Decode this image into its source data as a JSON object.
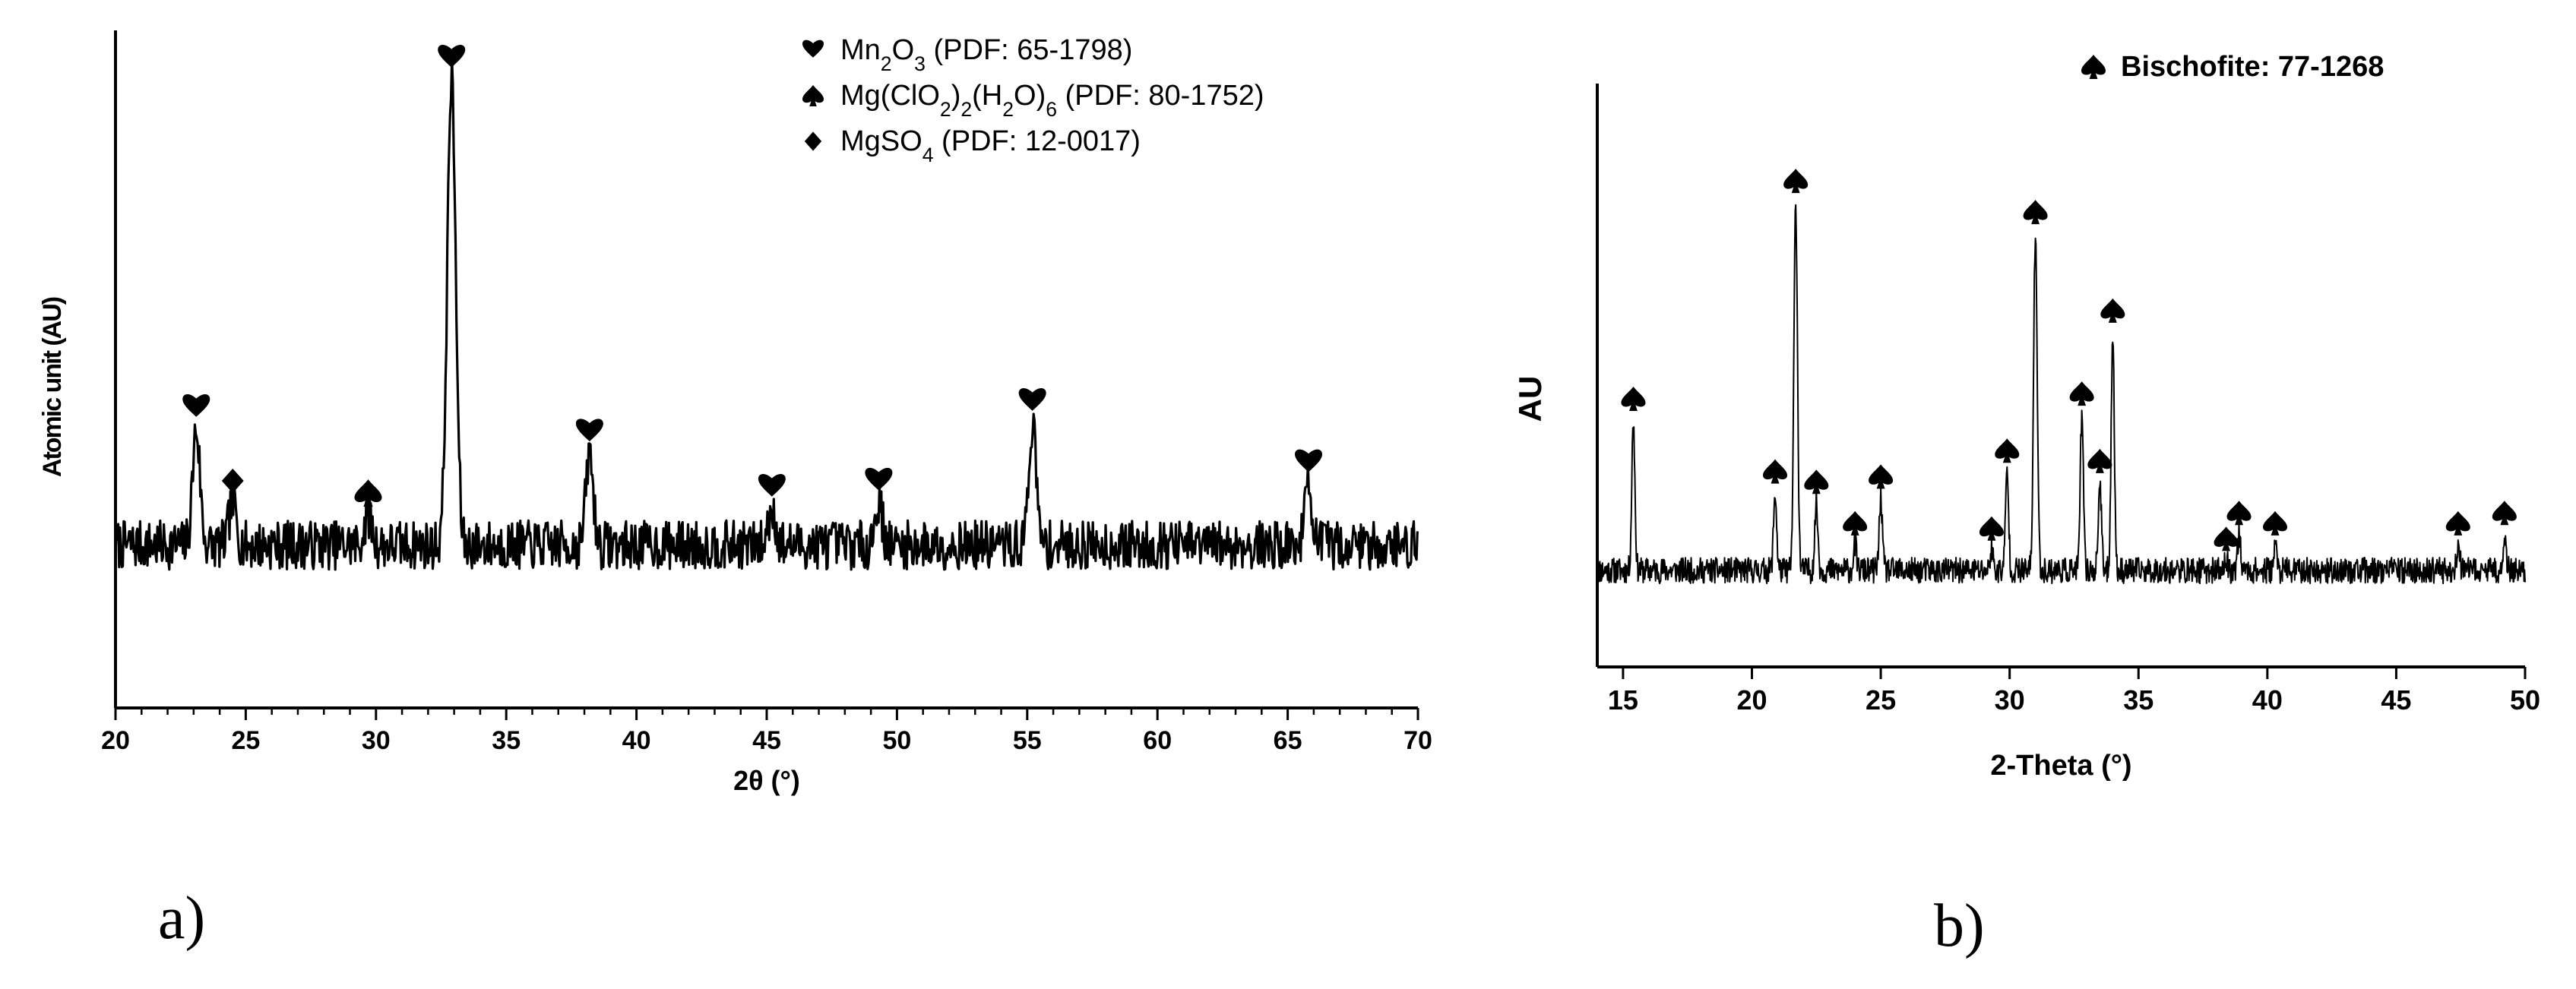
{
  "chart_data": [
    {
      "id": "a",
      "type": "line",
      "panel_label": "a)",
      "title": "",
      "xlabel": "2θ (°)",
      "ylabel": "Atomic unit (AU)",
      "xlim": [
        20,
        70
      ],
      "xticks": [
        20,
        25,
        30,
        35,
        40,
        45,
        50,
        55,
        60,
        65,
        70
      ],
      "ylim": [
        0,
        100
      ],
      "grid": false,
      "baseline": 21,
      "noise": 4,
      "legend": {
        "placement": "top-right",
        "entries": [
          {
            "marker": "heart",
            "parts": [
              [
                "Mn"
              ],
              [
                "2",
                "sub"
              ],
              [
                "O"
              ],
              [
                "3",
                "sub"
              ],
              [
                " (PDF: 65-1798)"
              ]
            ]
          },
          {
            "marker": "spade",
            "parts": [
              [
                "Mg(ClO"
              ],
              [
                "2",
                "sub"
              ],
              [
                ")"
              ],
              [
                "2",
                "sub"
              ],
              [
                "(H"
              ],
              [
                "2",
                "sub"
              ],
              [
                "O)"
              ],
              [
                "6",
                "sub"
              ],
              [
                " (PDF: 80-1752)"
              ]
            ]
          },
          {
            "marker": "diamond",
            "parts": [
              [
                "MgSO"
              ],
              [
                "4",
                "sub"
              ],
              [
                " (PDF: 12-0017)"
              ]
            ]
          }
        ]
      },
      "peaks": [
        {
          "x": 23.1,
          "y": 40,
          "phase": "heart"
        },
        {
          "x": 24.5,
          "y": 28,
          "phase": "diamond"
        },
        {
          "x": 29.7,
          "y": 26,
          "phase": "spade"
        },
        {
          "x": 32.9,
          "y": 97,
          "phase": "heart"
        },
        {
          "x": 38.2,
          "y": 36,
          "phase": "heart"
        },
        {
          "x": 45.2,
          "y": 27,
          "phase": "heart"
        },
        {
          "x": 49.3,
          "y": 28,
          "phase": "heart"
        },
        {
          "x": 55.2,
          "y": 41,
          "phase": "heart"
        },
        {
          "x": 65.8,
          "y": 31,
          "phase": "heart"
        }
      ]
    },
    {
      "id": "b",
      "type": "line",
      "panel_label": "b)",
      "title": "",
      "xlabel": "2-Theta (°)",
      "ylabel": "AU",
      "xlim": [
        14,
        50
      ],
      "xticks": [
        15,
        20,
        25,
        30,
        35,
        40,
        45,
        50
      ],
      "ylim": [
        0,
        100
      ],
      "grid": false,
      "baseline": 12,
      "noise": 2.5,
      "legend": {
        "placement": "top-right",
        "entries": [
          {
            "marker": "spade",
            "parts": [
              [
                "Bischofite: 77-1268"
              ]
            ]
          }
        ]
      },
      "peaks": [
        {
          "x": 15.4,
          "y": 41,
          "phase": "spade"
        },
        {
          "x": 20.9,
          "y": 27,
          "phase": "spade"
        },
        {
          "x": 21.7,
          "y": 83,
          "phase": "spade"
        },
        {
          "x": 22.5,
          "y": 25,
          "phase": "spade"
        },
        {
          "x": 24.0,
          "y": 17,
          "phase": "spade"
        },
        {
          "x": 25.0,
          "y": 26,
          "phase": "spade"
        },
        {
          "x": 29.3,
          "y": 16,
          "phase": "spade"
        },
        {
          "x": 29.9,
          "y": 31,
          "phase": "spade"
        },
        {
          "x": 31.0,
          "y": 77,
          "phase": "spade"
        },
        {
          "x": 32.8,
          "y": 42,
          "phase": "spade"
        },
        {
          "x": 33.5,
          "y": 29,
          "phase": "spade"
        },
        {
          "x": 34.0,
          "y": 58,
          "phase": "spade"
        },
        {
          "x": 38.4,
          "y": 14,
          "phase": "spade"
        },
        {
          "x": 38.9,
          "y": 19,
          "phase": "spade"
        },
        {
          "x": 40.3,
          "y": 17,
          "phase": "spade"
        },
        {
          "x": 47.4,
          "y": 17,
          "phase": "spade"
        },
        {
          "x": 49.2,
          "y": 19,
          "phase": "spade"
        }
      ]
    }
  ]
}
